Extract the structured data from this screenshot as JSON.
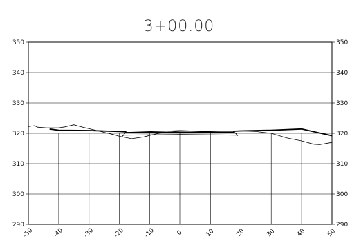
{
  "chart_data": {
    "type": "line",
    "title": "3+00.00",
    "xlabel": "",
    "ylabel": "",
    "xlim": [
      -50,
      50
    ],
    "ylim": [
      290,
      350
    ],
    "x_ticks": [
      -50,
      -40,
      -30,
      -20,
      -10,
      0,
      10,
      20,
      30,
      40,
      50
    ],
    "x_tick_labels": [
      "-50",
      "-40",
      "-30",
      "-20",
      "-10",
      "0",
      "10",
      "20",
      "30",
      "40",
      "50"
    ],
    "y_ticks": [
      290,
      300,
      310,
      320,
      330,
      340,
      350
    ],
    "y_tick_labels": [
      "290",
      "300",
      "310",
      "320",
      "330",
      "340",
      "350"
    ],
    "grid": true,
    "series": [
      {
        "x": [
          -50,
          -48,
          -47,
          -44,
          -40,
          -38,
          -35,
          -33,
          -30,
          -27,
          -22,
          -20,
          -16,
          -12,
          -8,
          -4,
          0,
          10,
          20,
          25,
          30,
          35,
          40,
          44,
          46,
          50
        ],
        "y": [
          322.2,
          322.5,
          322.0,
          321.8,
          321.8,
          322.1,
          322.8,
          322.2,
          321.5,
          320.8,
          319.6,
          319.0,
          318.2,
          318.8,
          319.8,
          320.4,
          320.7,
          320.8,
          320.8,
          320.6,
          320.0,
          318.5,
          317.5,
          316.4,
          316.3,
          317.0
        ]
      },
      {
        "x": [
          -43,
          -40,
          -30,
          -20,
          -18,
          -17.5,
          17.5,
          18,
          20,
          30,
          40,
          50
        ],
        "y": [
          321.4,
          321.0,
          320.9,
          320.6,
          320.5,
          320.2,
          320.4,
          320.7,
          320.8,
          321.0,
          321.4,
          319.2
        ]
      },
      {
        "x": [
          -19,
          -18,
          0,
          18,
          19
        ],
        "y": [
          319.0,
          320.3,
          320.9,
          320.3,
          319.2
        ]
      },
      {
        "x": [
          -19,
          -18,
          0,
          18,
          19
        ],
        "y": [
          319.4,
          319.4,
          319.6,
          319.4,
          319.4
        ]
      }
    ]
  }
}
